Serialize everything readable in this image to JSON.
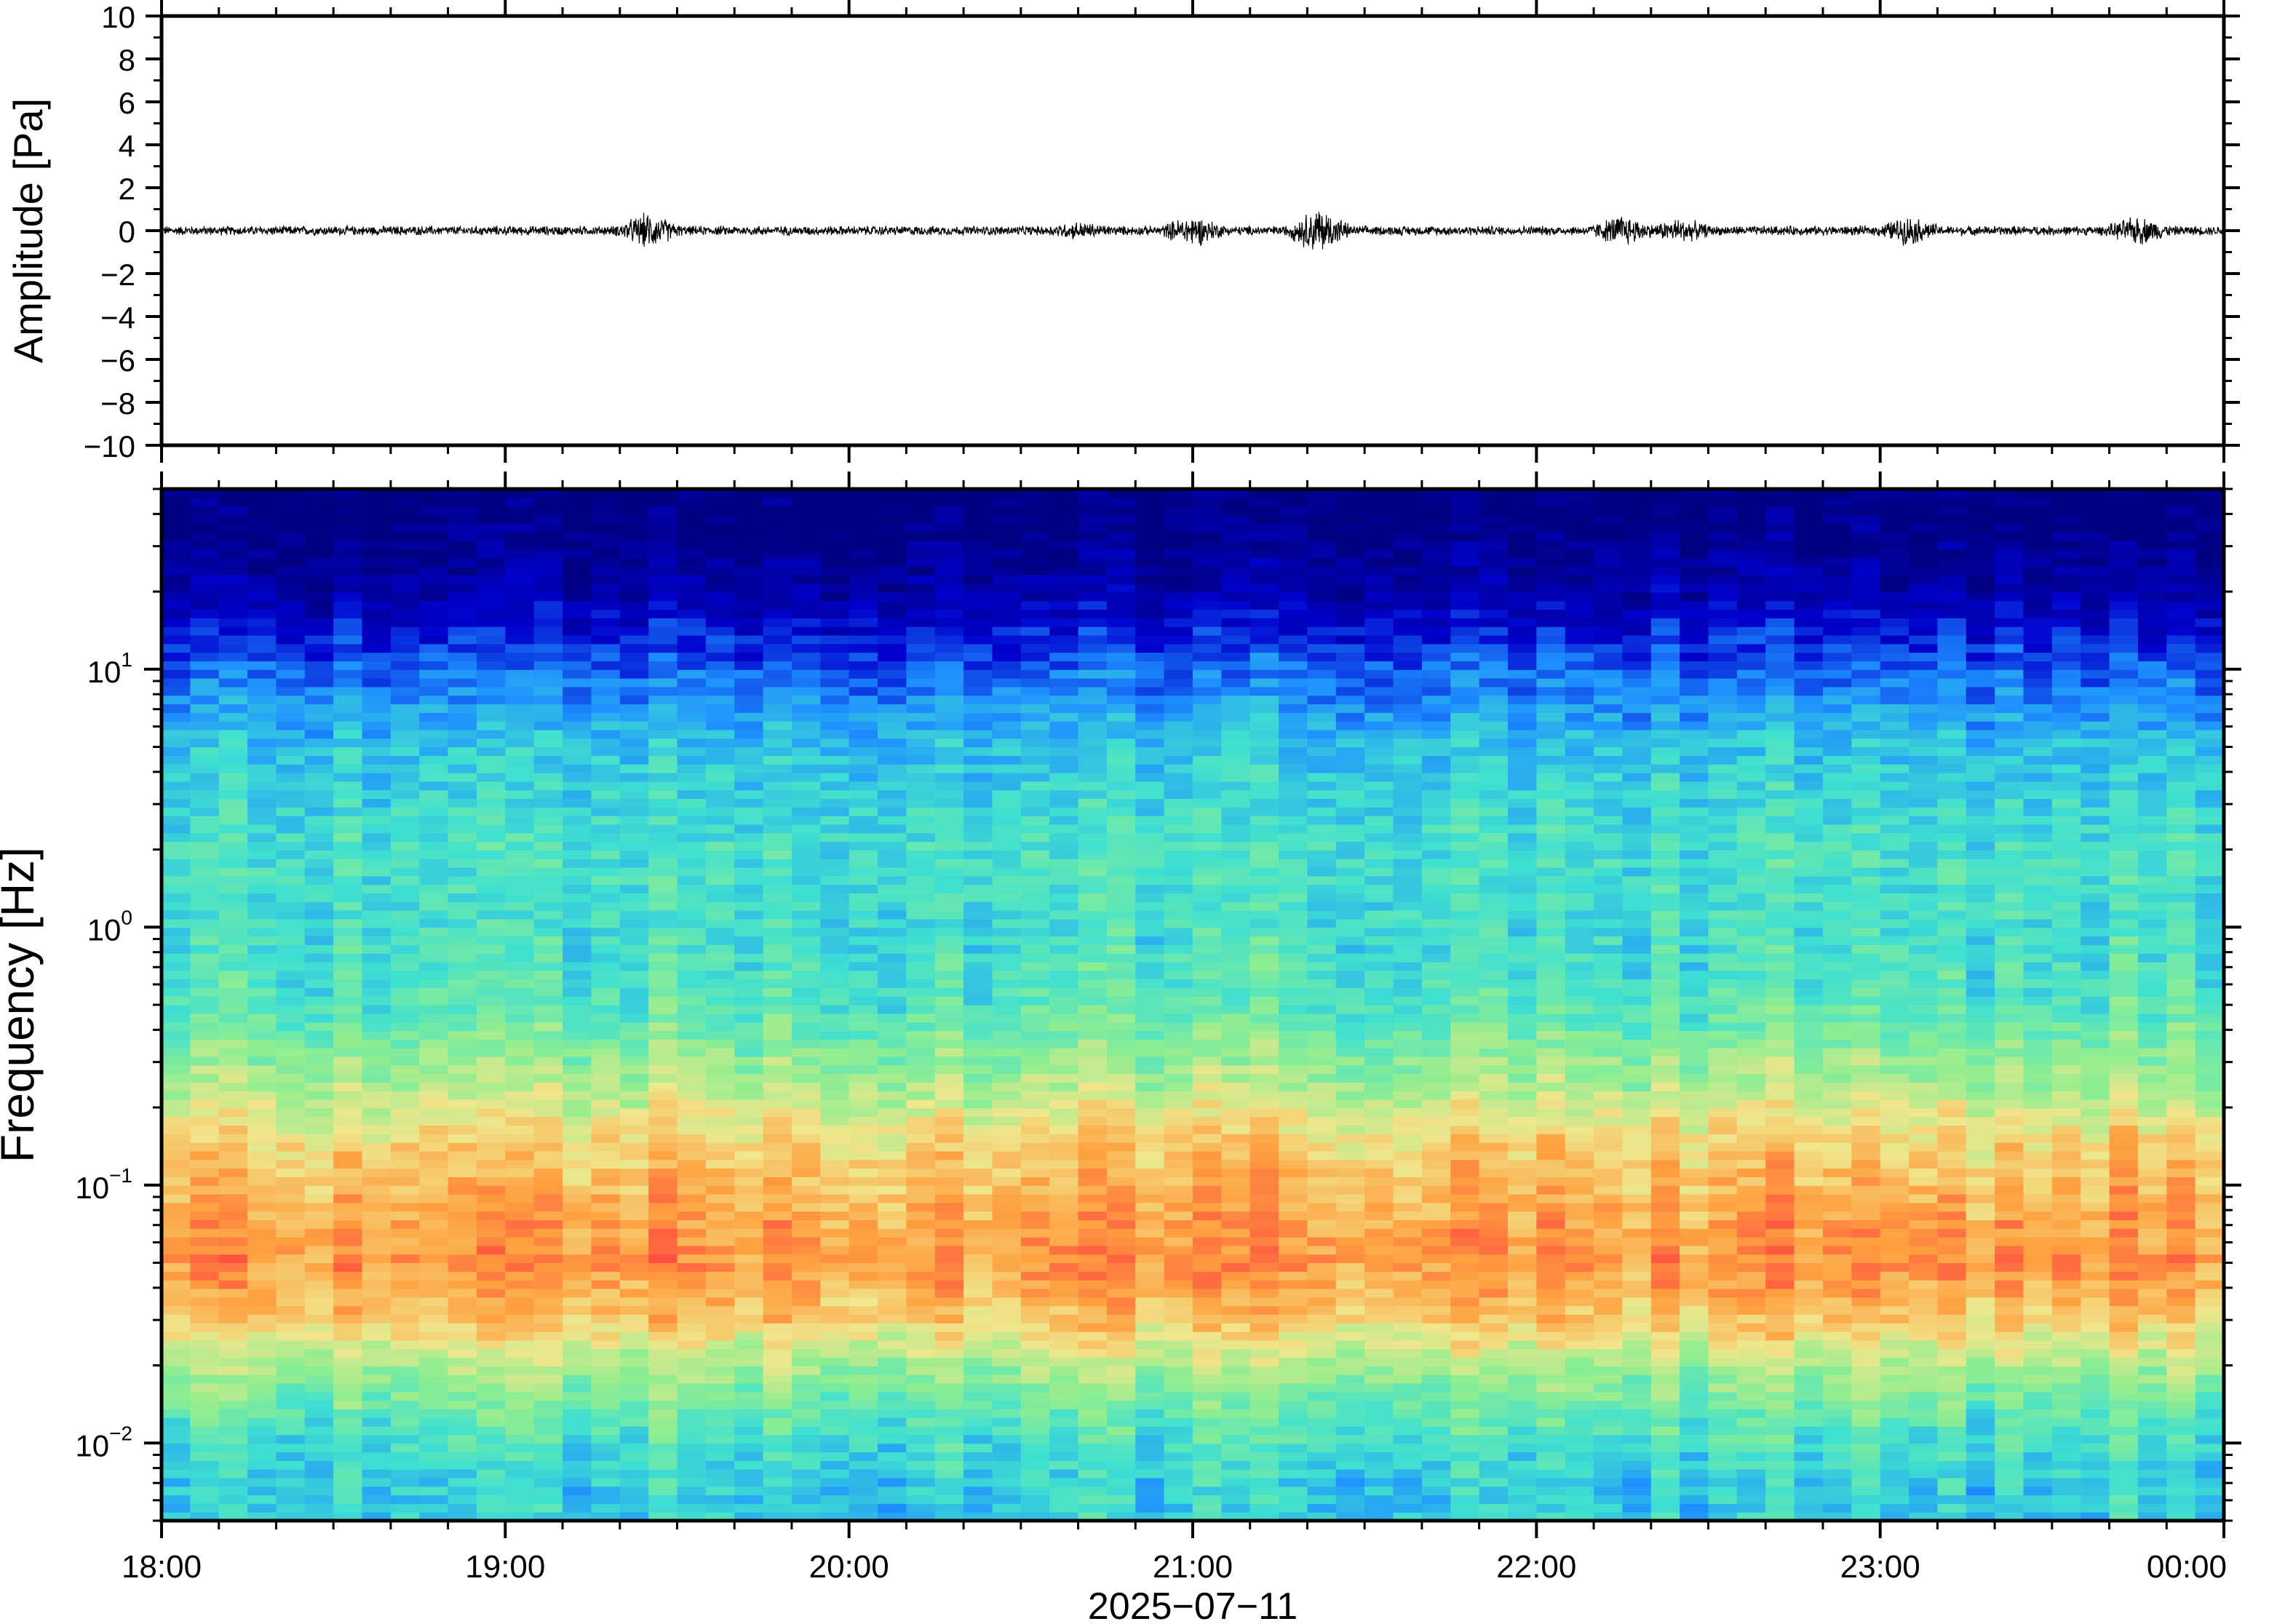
{
  "chart_data": [
    {
      "type": "line",
      "ylabel": "Amplitude [Pa]",
      "ylim": [
        -10,
        10
      ],
      "yticks": [
        "10",
        "8",
        "6",
        "4",
        "2",
        "0",
        "−2",
        "−4",
        "−6",
        "−8",
        "−10"
      ],
      "ytick_values": [
        10,
        8,
        6,
        4,
        2,
        0,
        -2,
        -4,
        -6,
        -8,
        -10
      ],
      "xlim": [
        "18:00",
        "00:00"
      ],
      "baseline": 0,
      "typical_amplitude": 0.25,
      "bursts": [
        {
          "time": "19:25",
          "amplitude": 1.0
        },
        {
          "time": "20:40",
          "amplitude": 0.5
        },
        {
          "time": "21:00",
          "amplitude": 0.9
        },
        {
          "time": "21:22",
          "amplitude": 1.3
        },
        {
          "time": "22:15",
          "amplitude": 0.9
        },
        {
          "time": "22:25",
          "amplitude": 0.7
        },
        {
          "time": "23:05",
          "amplitude": 0.8
        },
        {
          "time": "23:45",
          "amplitude": 0.8
        }
      ],
      "line_color": "#000000"
    },
    {
      "type": "heatmap",
      "ylabel": "Frequency [Hz]",
      "yscale": "log",
      "ylim": [
        0.005,
        50
      ],
      "yticks": [
        {
          "value": 10,
          "base": "10",
          "exp": "1"
        },
        {
          "value": 1,
          "base": "10",
          "exp": "0"
        },
        {
          "value": 0.1,
          "base": "10",
          "exp": "−1"
        },
        {
          "value": 0.01,
          "base": "10",
          "exp": "−2"
        }
      ],
      "xlabel": "2025−07−11",
      "xticks": [
        "18:00",
        "19:00",
        "20:00",
        "21:00",
        "22:00",
        "23:00",
        "00:00"
      ],
      "colormap": [
        "#000080",
        "#0000cd",
        "#1e90ff",
        "#40e0d0",
        "#90ee90",
        "#f0e68c",
        "#ffa040",
        "#ff4040"
      ],
      "intensity_profile": [
        {
          "freq": 40,
          "level": 0.0
        },
        {
          "freq": 20,
          "level": 0.08
        },
        {
          "freq": 10,
          "level": 0.25
        },
        {
          "freq": 5,
          "level": 0.38
        },
        {
          "freq": 2,
          "level": 0.45
        },
        {
          "freq": 1,
          "level": 0.44
        },
        {
          "freq": 0.5,
          "level": 0.48
        },
        {
          "freq": 0.25,
          "level": 0.62
        },
        {
          "freq": 0.15,
          "level": 0.76
        },
        {
          "freq": 0.08,
          "level": 0.84
        },
        {
          "freq": 0.05,
          "level": 0.88
        },
        {
          "freq": 0.03,
          "level": 0.78
        },
        {
          "freq": 0.02,
          "level": 0.62
        },
        {
          "freq": 0.012,
          "level": 0.48
        },
        {
          "freq": 0.007,
          "level": 0.4
        }
      ]
    }
  ]
}
